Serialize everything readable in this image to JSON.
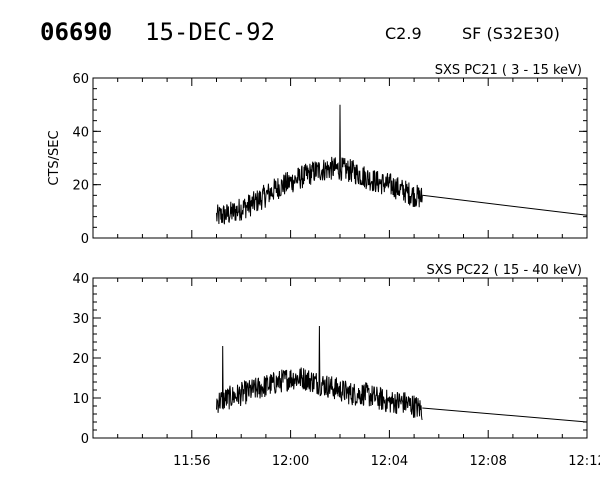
{
  "header": {
    "event_id": "06690",
    "date": "15-DEC-92",
    "flare_class": "C2.9",
    "location": "SF (S32E30)"
  },
  "colors": {
    "foreground": "#000000",
    "background": "#ffffff"
  },
  "chart_data": [
    {
      "type": "line",
      "title": "SXS PC21  (  3 - 15 keV)",
      "xlabel": "",
      "ylabel": "CTS/SEC",
      "xlim": [
        "11:52",
        "12:12"
      ],
      "ylim": [
        0,
        60
      ],
      "yticks": [
        0,
        20,
        40,
        60
      ],
      "xticks": [
        "11:56",
        "12:00",
        "12:04",
        "12:08",
        "12:12"
      ],
      "grid": false,
      "series": [
        {
          "x": [
            "11:57:00",
            "11:57:30",
            "11:58:00",
            "11:58:30",
            "11:59:00",
            "11:59:30",
            "12:00:00",
            "12:00:30",
            "12:01:00",
            "12:01:30",
            "12:02:00",
            "12:02:30",
            "12:03:00",
            "12:03:30",
            "12:04:00",
            "12:04:30",
            "12:05:00",
            "12:05:20"
          ],
          "y": [
            8,
            9,
            11,
            13,
            16,
            19,
            21,
            23,
            25,
            26,
            26,
            25,
            23,
            21,
            20,
            18,
            16,
            15
          ],
          "peaks": [
            {
              "x": "12:02:00",
              "y": 50
            }
          ]
        },
        {
          "x": [
            "12:05:20",
            "12:12:00"
          ],
          "y": [
            16,
            8.5
          ]
        }
      ]
    },
    {
      "type": "line",
      "title": "SXS PC22  ( 15 - 40 keV)",
      "xlabel": "",
      "ylabel": "",
      "xlim": [
        "11:52",
        "12:12"
      ],
      "ylim": [
        0,
        40
      ],
      "yticks": [
        0,
        10,
        20,
        30,
        40
      ],
      "xticks": [
        "11:56",
        "12:00",
        "12:04",
        "12:08",
        "12:12"
      ],
      "grid": false,
      "series": [
        {
          "x": [
            "11:57:00",
            "11:57:30",
            "11:58:00",
            "11:58:30",
            "11:59:00",
            "11:59:30",
            "12:00:00",
            "12:00:30",
            "12:01:00",
            "12:01:30",
            "12:02:00",
            "12:02:30",
            "12:03:00",
            "12:03:30",
            "12:04:00",
            "12:04:30",
            "12:05:00",
            "12:05:20"
          ],
          "y": [
            9,
            10,
            11,
            12,
            13,
            14,
            15,
            15,
            14,
            13,
            12,
            11,
            11,
            10,
            9,
            9,
            8,
            7
          ],
          "peaks": [
            {
              "x": "11:57:15",
              "y": 23
            },
            {
              "x": "12:01:10",
              "y": 28
            }
          ]
        },
        {
          "x": [
            "12:05:20",
            "12:12:00"
          ],
          "y": [
            7.5,
            4
          ]
        }
      ]
    }
  ]
}
